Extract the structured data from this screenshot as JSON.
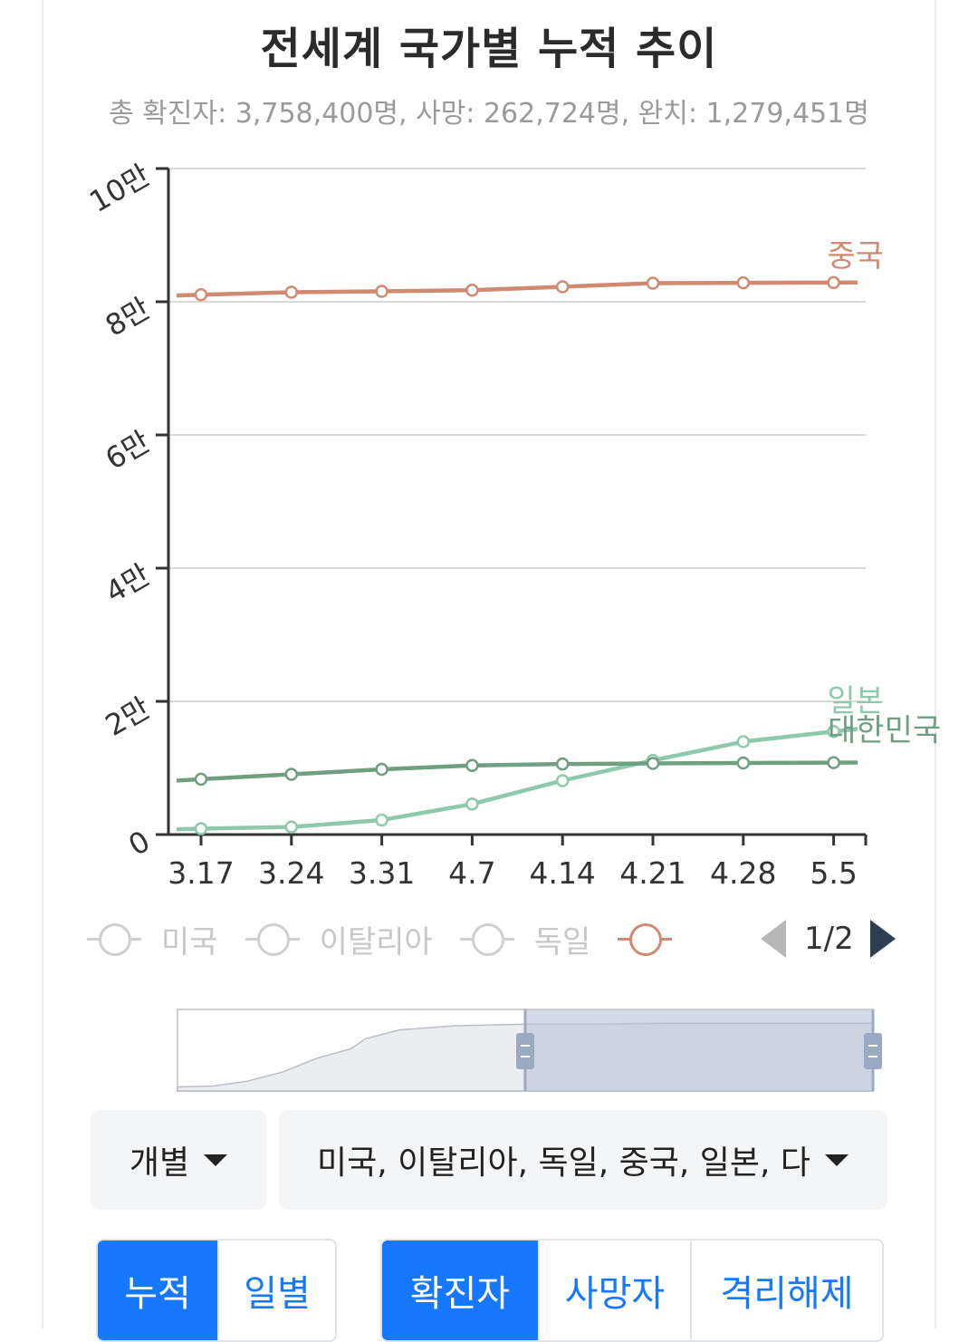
{
  "title": "전세계 국가별 누적 추이",
  "subtitle": "총 확진자: 3,758,400명, 사망: 262,724명, 완치: 1,279,451명",
  "chart_data": {
    "type": "line",
    "title": "전세계 국가별 누적 추이",
    "x": [
      "3.17",
      "3.24",
      "3.31",
      "4.7",
      "4.14",
      "4.21",
      "4.28",
      "5.5"
    ],
    "xlabel": "",
    "ylabel": "",
    "yticks": [
      "0",
      "2만",
      "4만",
      "6만",
      "8만",
      "10만"
    ],
    "ylim": [
      0,
      100000
    ],
    "grid": true,
    "series": [
      {
        "name": "중국",
        "color": "#d08a72",
        "values": [
          81050,
          81430,
          81560,
          81740,
          82250,
          82790,
          82840,
          82880
        ]
      },
      {
        "name": "일본",
        "color": "#8ec9ae",
        "values": [
          880,
          1140,
          2180,
          4580,
          8100,
          11140,
          13940,
          15480
        ]
      },
      {
        "name": "대한민국",
        "color": "#6f9e80",
        "values": [
          8320,
          9040,
          9790,
          10380,
          10590,
          10680,
          10750,
          10800
        ]
      }
    ]
  },
  "legend": {
    "items": [
      {
        "label": "미국",
        "active": false
      },
      {
        "label": "이탈리아",
        "active": false
      },
      {
        "label": "독일",
        "active": false
      },
      {
        "label": "",
        "active": true
      }
    ],
    "page": "1/2"
  },
  "brush": {
    "selection": [
      0.5,
      1.0
    ]
  },
  "controls": {
    "mode_select": "개별",
    "country_select": "미국, 이탈리아, 독일, 중국, 일본, 다"
  },
  "buttons": {
    "period": [
      {
        "label": "누적",
        "on": true
      },
      {
        "label": "일별",
        "on": false
      }
    ],
    "metric": [
      {
        "label": "확진자",
        "on": true
      },
      {
        "label": "사망자",
        "on": false
      },
      {
        "label": "격리해제",
        "on": false
      }
    ]
  }
}
